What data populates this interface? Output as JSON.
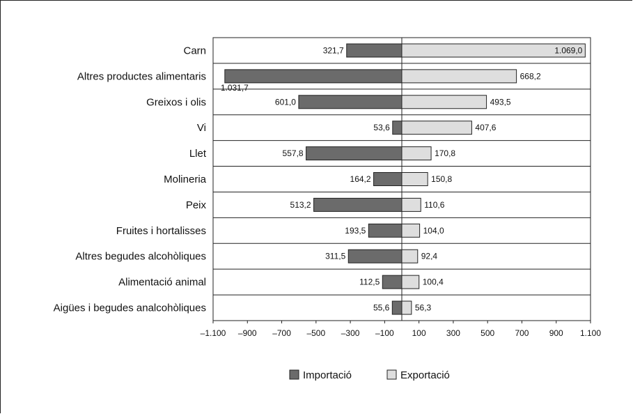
{
  "chart_data": {
    "type": "bar",
    "orientation": "horizontal",
    "title": "",
    "xlabel": "",
    "ylabel": "",
    "categories": [
      "Carn",
      "Altres productes alimentaris",
      "Greixos i olis",
      "Vi",
      "Llet",
      "Molineria",
      "Peix",
      "Fruites i hortalisses",
      "Altres begudes alcohòliques",
      "Alimentació animal",
      "Aigües i begudes analcohòliques"
    ],
    "series": [
      {
        "name": "Importació",
        "color": "#6b6b6b",
        "values": [
          -321.7,
          -1031.7,
          -601.0,
          -53.6,
          -557.8,
          -164.2,
          -513.2,
          -193.5,
          -311.5,
          -112.5,
          -55.6
        ],
        "labels": [
          "321,7",
          "1.031,7",
          "601,0",
          "53,6",
          "557,8",
          "164,2",
          "513,2",
          "193,5",
          "311,5",
          "112,5",
          "55,6"
        ]
      },
      {
        "name": "Exportació",
        "color": "#dedede",
        "values": [
          1069.0,
          668.2,
          493.5,
          407.6,
          170.8,
          150.8,
          110.6,
          104.0,
          92.4,
          100.4,
          56.3
        ],
        "labels": [
          "1.069,0",
          "668,2",
          "493,5",
          "407,6",
          "170,8",
          "150,8",
          "110,6",
          "104,0",
          "92,4",
          "100,4",
          "56,3"
        ]
      }
    ],
    "xlim": [
      -1100,
      1100
    ],
    "xticks": [
      -1100,
      -900,
      -700,
      -500,
      -300,
      -100,
      100,
      300,
      500,
      700,
      900,
      1100
    ],
    "xtick_labels": [
      "–1.100",
      "–900",
      "–700",
      "–500",
      "–300",
      "–100",
      "100",
      "300",
      "500",
      "700",
      "900",
      "1.100"
    ],
    "grid": "horizontal row separators",
    "legend": "bottom-center"
  }
}
